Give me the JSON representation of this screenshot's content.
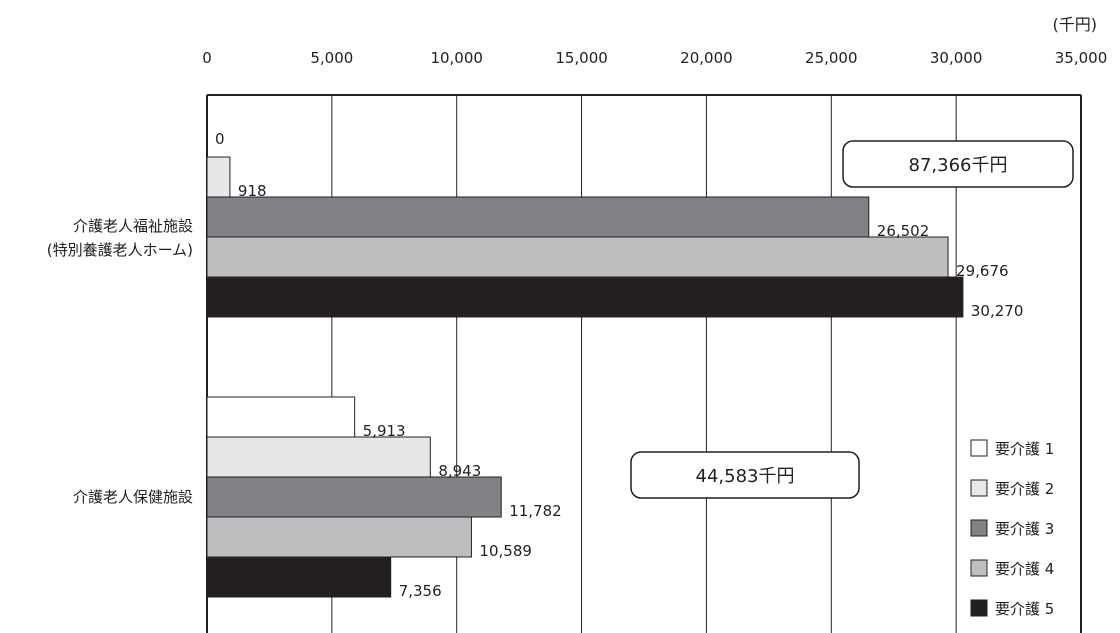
{
  "chart_data": {
    "type": "bar",
    "orientation": "horizontal",
    "unit": "(千円)",
    "xlim": [
      0,
      35000
    ],
    "x_ticks": [
      0,
      5000,
      10000,
      15000,
      20000,
      25000,
      30000,
      35000
    ],
    "x_tick_labels": [
      "0",
      "5,000",
      "10,000",
      "15,000",
      "20,000",
      "25,000",
      "30,000",
      "35,000"
    ],
    "grid": true,
    "legend_position": "bottom-right",
    "categories": [
      {
        "lines": [
          "介護老人福祉施設",
          "(特別養護老人ホーム)"
        ],
        "total_label": "87,366千円"
      },
      {
        "lines": [
          "介護老人保健施設"
        ],
        "total_label": "44,583千円"
      }
    ],
    "series": [
      {
        "name": "要介護 1",
        "color": "#ffffff",
        "values": [
          0,
          5913
        ],
        "value_labels": [
          "0",
          "5,913"
        ]
      },
      {
        "name": "要介護 2",
        "color": "#e6e7e8",
        "values": [
          918,
          8943
        ],
        "value_labels": [
          "918",
          "8,943"
        ]
      },
      {
        "name": "要介護 3",
        "color": "#808285",
        "values": [
          26502,
          11782
        ],
        "value_labels": [
          "26,502",
          "11,782"
        ]
      },
      {
        "name": "要介護 4",
        "color": "#bcbec0",
        "values": [
          29676,
          10589
        ],
        "value_labels": [
          "29,676",
          "10,589"
        ]
      },
      {
        "name": "要介護 5",
        "color": "#231f20",
        "values": [
          30270,
          7356
        ],
        "value_labels": [
          "30,270",
          "7,356"
        ]
      }
    ]
  }
}
